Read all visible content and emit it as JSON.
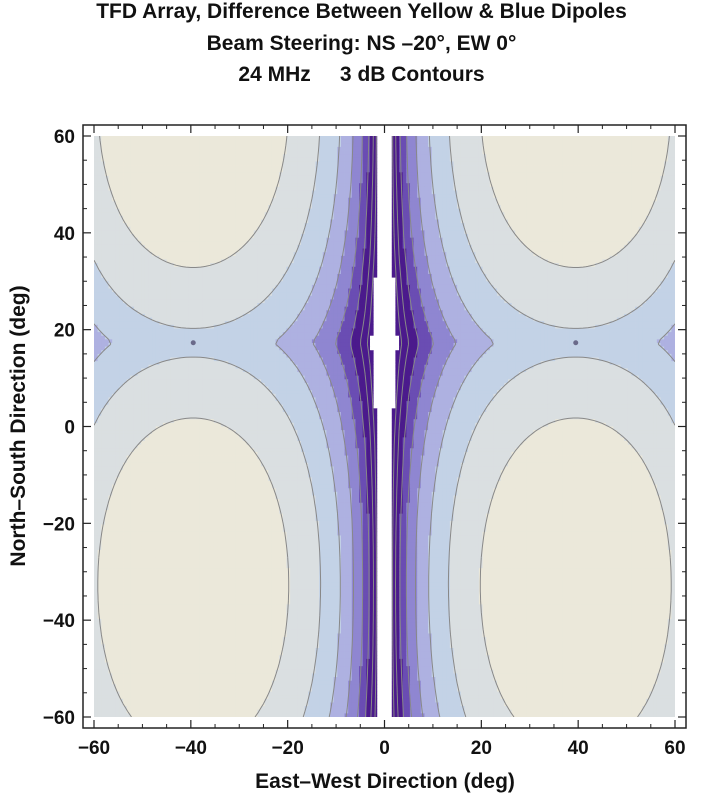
{
  "chart_data": {
    "type": "contour",
    "title_lines": [
      "TFD Array, Difference Between Yellow & Blue Dipoles",
      "Beam Steering: NS –20°, EW 0°",
      "24 MHz     3 dB Contours"
    ],
    "xlabel": "East–West Direction (deg)",
    "ylabel": "North–South Direction (deg)",
    "xlim": [
      -60,
      60
    ],
    "ylim": [
      -60,
      60
    ],
    "x_ticks": [
      {
        "value": -60,
        "label": "−60"
      },
      {
        "value": -40,
        "label": "−40"
      },
      {
        "value": -20,
        "label": "−20"
      },
      {
        "value": 0,
        "label": "0"
      },
      {
        "value": 20,
        "label": "20"
      },
      {
        "value": 40,
        "label": "40"
      },
      {
        "value": 60,
        "label": "60"
      }
    ],
    "y_ticks": [
      {
        "value": -60,
        "label": "−60"
      },
      {
        "value": -40,
        "label": "−40"
      },
      {
        "value": -20,
        "label": "−20"
      },
      {
        "value": 0,
        "label": "0"
      },
      {
        "value": 20,
        "label": "20"
      },
      {
        "value": 40,
        "label": "40"
      },
      {
        "value": 60,
        "label": "60"
      }
    ],
    "contour_step_db": 3,
    "singular_points": [
      {
        "x": -39.5,
        "y": 17.3
      },
      {
        "x": 39.5,
        "y": 17.3
      }
    ],
    "null_lines": {
      "vertical_x": [
        -39.5,
        39.5
      ],
      "horizontal_y": 17.3
    },
    "colormap": [
      "#4b1a8c",
      "#6a4db3",
      "#8f86d1",
      "#aeb1e1",
      "#c3d2e6",
      "#dadfe1",
      "#ebe8da"
    ],
    "contour_line_color": "#888888",
    "grid": false
  }
}
